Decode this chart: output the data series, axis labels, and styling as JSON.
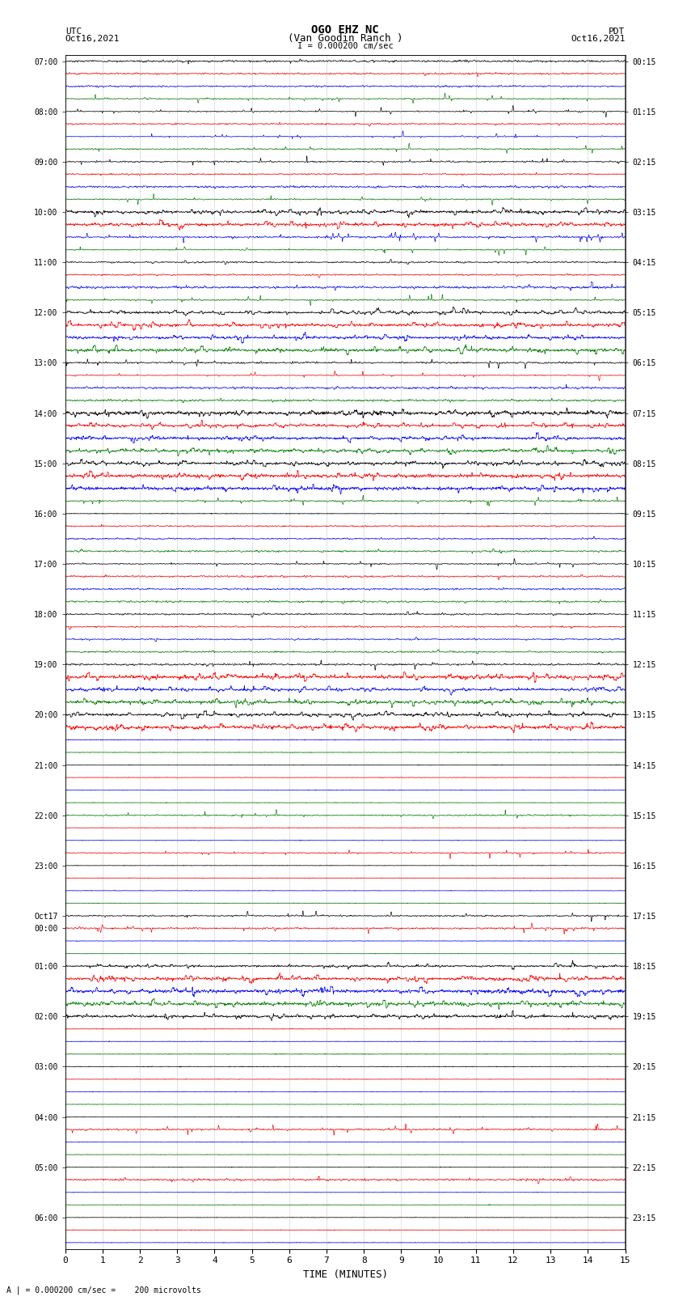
{
  "title_line1": "OGO EHZ NC",
  "title_line2": "(Van Goodin Ranch )",
  "scale_label": "I = 0.000200 cm/sec",
  "left_label_top": "UTC",
  "left_label_date": "Oct16,2021",
  "right_label_top": "PDT",
  "right_label_date": "Oct16,2021",
  "bottom_label": "TIME (MINUTES)",
  "bottom_note": "A | = 0.000200 cm/sec =    200 microvolts",
  "xlabel_ticks": [
    0,
    1,
    2,
    3,
    4,
    5,
    6,
    7,
    8,
    9,
    10,
    11,
    12,
    13,
    14,
    15
  ],
  "bg_color": "#ffffff",
  "trace_colors_pattern": [
    "black",
    "red",
    "blue",
    "green"
  ],
  "n_points": 2000,
  "rows": [
    {
      "label_left": "07:00",
      "label_right": "00:15",
      "amp": 0.25,
      "style": "normal"
    },
    {
      "label_left": "",
      "label_right": "",
      "amp": 0.2,
      "style": "normal"
    },
    {
      "label_left": "",
      "label_right": "",
      "amp": 0.2,
      "style": "normal"
    },
    {
      "label_left": "",
      "label_right": "",
      "amp": 0.35,
      "style": "spiky"
    },
    {
      "label_left": "08:00",
      "label_right": "01:15",
      "amp": 0.3,
      "style": "spiky"
    },
    {
      "label_left": "",
      "label_right": "",
      "amp": 0.18,
      "style": "normal"
    },
    {
      "label_left": "",
      "label_right": "",
      "amp": 0.45,
      "style": "spiky"
    },
    {
      "label_left": "",
      "label_right": "",
      "amp": 0.6,
      "style": "spiky"
    },
    {
      "label_left": "09:00",
      "label_right": "02:15",
      "amp": 0.4,
      "style": "spiky"
    },
    {
      "label_left": "",
      "label_right": "",
      "amp": 0.18,
      "style": "normal"
    },
    {
      "label_left": "",
      "label_right": "",
      "amp": 0.25,
      "style": "normal"
    },
    {
      "label_left": "",
      "label_right": "",
      "amp": 0.5,
      "style": "spiky"
    },
    {
      "label_left": "10:00",
      "label_right": "03:15",
      "amp": 0.8,
      "style": "heavy"
    },
    {
      "label_left": "",
      "label_right": "",
      "amp": 0.9,
      "style": "heavy"
    },
    {
      "label_left": "",
      "label_right": "",
      "amp": 0.55,
      "style": "spiky"
    },
    {
      "label_left": "",
      "label_right": "",
      "amp": 0.6,
      "style": "spiky"
    },
    {
      "label_left": "11:00",
      "label_right": "04:15",
      "amp": 0.2,
      "style": "normal"
    },
    {
      "label_left": "",
      "label_right": "",
      "amp": 0.18,
      "style": "normal"
    },
    {
      "label_left": "",
      "label_right": "",
      "amp": 0.3,
      "style": "normal"
    },
    {
      "label_left": "",
      "label_right": "",
      "amp": 0.7,
      "style": "spiky"
    },
    {
      "label_left": "12:00",
      "label_right": "05:15",
      "amp": 0.95,
      "style": "heavy"
    },
    {
      "label_left": "",
      "label_right": "",
      "amp": 1.0,
      "style": "heavy"
    },
    {
      "label_left": "",
      "label_right": "",
      "amp": 0.95,
      "style": "heavy"
    },
    {
      "label_left": "",
      "label_right": "",
      "amp": 0.9,
      "style": "heavy"
    },
    {
      "label_left": "13:00",
      "label_right": "06:15",
      "amp": 0.35,
      "style": "spiky"
    },
    {
      "label_left": "",
      "label_right": "",
      "amp": 0.45,
      "style": "spiky"
    },
    {
      "label_left": "",
      "label_right": "",
      "amp": 0.25,
      "style": "normal"
    },
    {
      "label_left": "",
      "label_right": "",
      "amp": 0.25,
      "style": "normal"
    },
    {
      "label_left": "14:00",
      "label_right": "07:15",
      "amp": 0.8,
      "style": "heavy"
    },
    {
      "label_left": "",
      "label_right": "",
      "amp": 0.85,
      "style": "heavy"
    },
    {
      "label_left": "",
      "label_right": "",
      "amp": 0.9,
      "style": "heavy"
    },
    {
      "label_left": "",
      "label_right": "",
      "amp": 0.85,
      "style": "heavy"
    },
    {
      "label_left": "15:00",
      "label_right": "08:15",
      "amp": 0.9,
      "style": "heavy"
    },
    {
      "label_left": "",
      "label_right": "",
      "amp": 0.85,
      "style": "heavy"
    },
    {
      "label_left": "",
      "label_right": "",
      "amp": 0.8,
      "style": "heavy"
    },
    {
      "label_left": "",
      "label_right": "",
      "amp": 0.6,
      "style": "spiky"
    },
    {
      "label_left": "16:00",
      "label_right": "09:15",
      "amp": 0.15,
      "style": "flat"
    },
    {
      "label_left": "",
      "label_right": "",
      "amp": 0.18,
      "style": "normal"
    },
    {
      "label_left": "",
      "label_right": "",
      "amp": 0.2,
      "style": "normal"
    },
    {
      "label_left": "",
      "label_right": "",
      "amp": 0.22,
      "style": "normal"
    },
    {
      "label_left": "17:00",
      "label_right": "10:15",
      "amp": 0.55,
      "style": "spiky"
    },
    {
      "label_left": "",
      "label_right": "",
      "amp": 0.2,
      "style": "normal"
    },
    {
      "label_left": "",
      "label_right": "",
      "amp": 0.2,
      "style": "normal"
    },
    {
      "label_left": "",
      "label_right": "",
      "amp": 0.22,
      "style": "normal"
    },
    {
      "label_left": "18:00",
      "label_right": "11:15",
      "amp": 0.2,
      "style": "normal"
    },
    {
      "label_left": "",
      "label_right": "",
      "amp": 0.18,
      "style": "normal"
    },
    {
      "label_left": "",
      "label_right": "",
      "amp": 0.18,
      "style": "normal"
    },
    {
      "label_left": "",
      "label_right": "",
      "amp": 0.2,
      "style": "normal"
    },
    {
      "label_left": "19:00",
      "label_right": "12:15",
      "amp": 0.45,
      "style": "spiky"
    },
    {
      "label_left": "",
      "label_right": "",
      "amp": 0.85,
      "style": "heavy"
    },
    {
      "label_left": "",
      "label_right": "",
      "amp": 0.9,
      "style": "heavy"
    },
    {
      "label_left": "",
      "label_right": "",
      "amp": 0.85,
      "style": "heavy"
    },
    {
      "label_left": "20:00",
      "label_right": "13:15",
      "amp": 0.7,
      "style": "heavy"
    },
    {
      "label_left": "",
      "label_right": "",
      "amp": 0.6,
      "style": "heavy"
    },
    {
      "label_left": "",
      "label_right": "",
      "amp": 0.15,
      "style": "flat"
    },
    {
      "label_left": "",
      "label_right": "",
      "amp": 0.15,
      "style": "flat"
    },
    {
      "label_left": "21:00",
      "label_right": "14:15",
      "amp": 0.12,
      "style": "flat"
    },
    {
      "label_left": "",
      "label_right": "",
      "amp": 0.12,
      "style": "flat"
    },
    {
      "label_left": "",
      "label_right": "",
      "amp": 0.12,
      "style": "flat"
    },
    {
      "label_left": "",
      "label_right": "",
      "amp": 0.12,
      "style": "flat"
    },
    {
      "label_left": "22:00",
      "label_right": "15:15",
      "amp": 0.35,
      "style": "green_spiky"
    },
    {
      "label_left": "",
      "label_right": "",
      "amp": 0.12,
      "style": "flat"
    },
    {
      "label_left": "",
      "label_right": "",
      "amp": 0.12,
      "style": "flat"
    },
    {
      "label_left": "",
      "label_right": "",
      "amp": 0.4,
      "style": "red_spiky"
    },
    {
      "label_left": "23:00",
      "label_right": "16:15",
      "amp": 0.12,
      "style": "flat"
    },
    {
      "label_left": "",
      "label_right": "",
      "amp": 0.12,
      "style": "flat"
    },
    {
      "label_left": "",
      "label_right": "",
      "amp": 0.12,
      "style": "flat"
    },
    {
      "label_left": "",
      "label_right": "",
      "amp": 0.12,
      "style": "flat"
    },
    {
      "label_left": "Oct17",
      "label_right": "17:15",
      "amp": 0.5,
      "style": "spiky"
    },
    {
      "label_left": "00:00",
      "label_right": "",
      "amp": 0.5,
      "style": "spiky"
    },
    {
      "label_left": "",
      "label_right": "",
      "amp": 0.12,
      "style": "flat"
    },
    {
      "label_left": "",
      "label_right": "",
      "amp": 0.12,
      "style": "flat"
    },
    {
      "label_left": "01:00",
      "label_right": "18:15",
      "amp": 0.8,
      "style": "heavy"
    },
    {
      "label_left": "",
      "label_right": "",
      "amp": 0.65,
      "style": "heavy"
    },
    {
      "label_left": "",
      "label_right": "",
      "amp": 0.7,
      "style": "heavy"
    },
    {
      "label_left": "",
      "label_right": "",
      "amp": 0.7,
      "style": "heavy"
    },
    {
      "label_left": "02:00",
      "label_right": "19:15",
      "amp": 0.55,
      "style": "heavy"
    },
    {
      "label_left": "",
      "label_right": "",
      "amp": 0.12,
      "style": "flat"
    },
    {
      "label_left": "",
      "label_right": "",
      "amp": 0.12,
      "style": "flat"
    },
    {
      "label_left": "",
      "label_right": "",
      "amp": 0.15,
      "style": "flat"
    },
    {
      "label_left": "03:00",
      "label_right": "20:15",
      "amp": 0.15,
      "style": "flat"
    },
    {
      "label_left": "",
      "label_right": "",
      "amp": 0.12,
      "style": "flat"
    },
    {
      "label_left": "",
      "label_right": "",
      "amp": 0.12,
      "style": "flat"
    },
    {
      "label_left": "",
      "label_right": "",
      "amp": 0.12,
      "style": "flat"
    },
    {
      "label_left": "04:00",
      "label_right": "21:15",
      "amp": 0.12,
      "style": "flat"
    },
    {
      "label_left": "",
      "label_right": "",
      "amp": 0.4,
      "style": "spiky"
    },
    {
      "label_left": "",
      "label_right": "",
      "amp": 0.12,
      "style": "flat"
    },
    {
      "label_left": "",
      "label_right": "",
      "amp": 0.12,
      "style": "flat"
    },
    {
      "label_left": "05:00",
      "label_right": "22:15",
      "amp": 0.12,
      "style": "flat"
    },
    {
      "label_left": "",
      "label_right": "",
      "amp": 0.25,
      "style": "normal"
    },
    {
      "label_left": "",
      "label_right": "",
      "amp": 0.12,
      "style": "flat"
    },
    {
      "label_left": "",
      "label_right": "",
      "amp": 0.12,
      "style": "flat"
    },
    {
      "label_left": "06:00",
      "label_right": "23:15",
      "amp": 0.12,
      "style": "flat"
    },
    {
      "label_left": "",
      "label_right": "",
      "amp": 0.12,
      "style": "flat"
    },
    {
      "label_left": "",
      "label_right": "",
      "amp": 0.12,
      "style": "flat"
    }
  ]
}
